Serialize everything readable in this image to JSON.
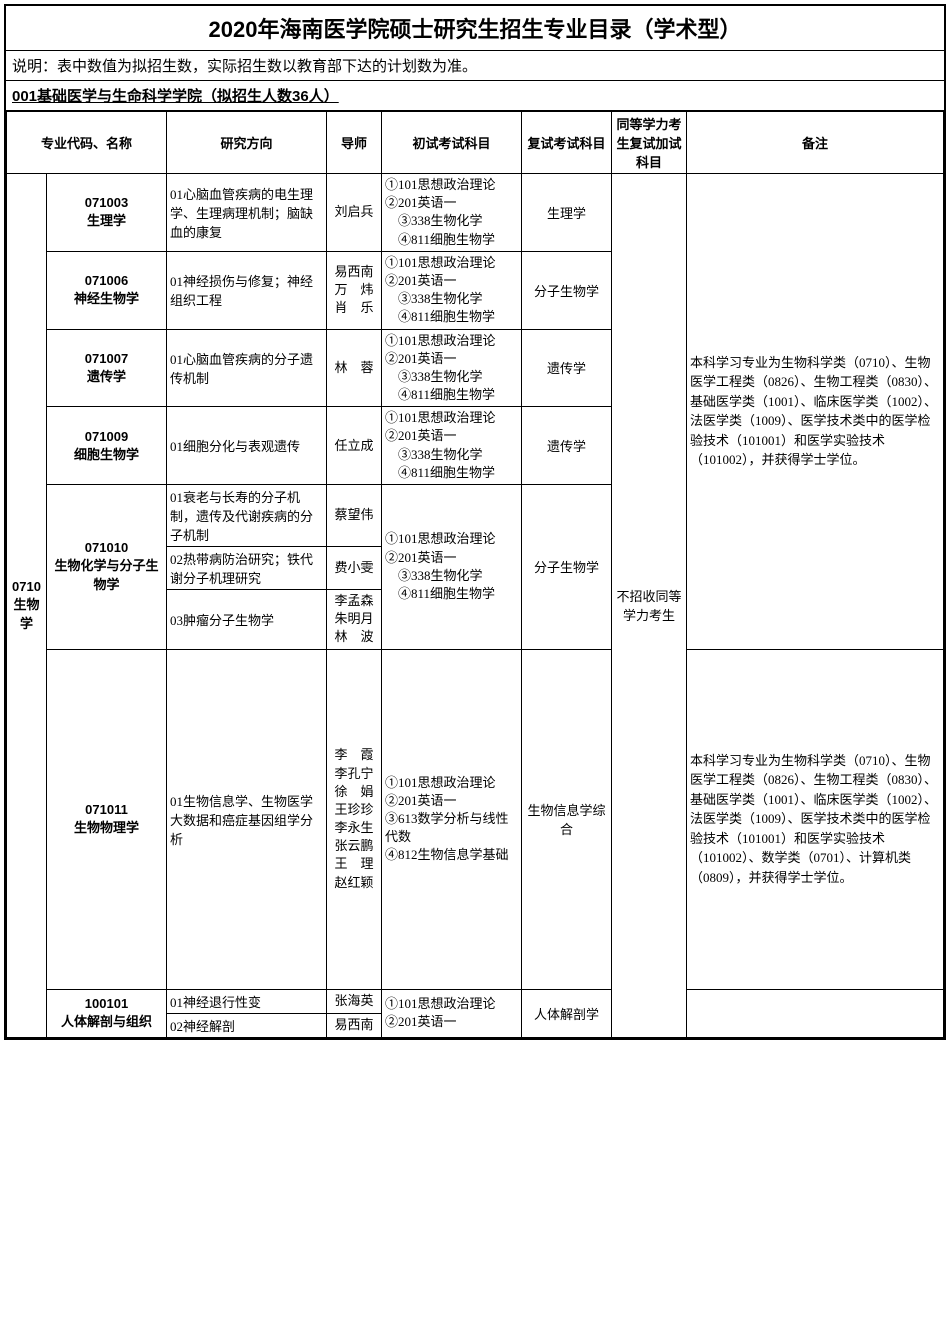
{
  "title": "2020年海南医学院硕士研究生招生专业目录（学术型）",
  "note": "说明：表中数值为拟招生数，实际招生数以教育部下达的计划数为准。",
  "department": "001基础医学与生命科学学院（拟招生人数36人）",
  "headers": {
    "code_name": "专业代码、名称",
    "direction": "研究方向",
    "advisor": "导师",
    "prelim": "初试考试科目",
    "reexam": "复试考试科目",
    "equiv": "同等学力考生复试加试科目",
    "remarks": "备注"
  },
  "cat": {
    "code": "0710",
    "name": "生物学"
  },
  "rows": {
    "r1": {
      "code": "071003",
      "name": "生理学",
      "dir": "01心脑血管疾病的电生理学、生理病理机制；脑缺血的康复",
      "adv": "刘启兵",
      "exam": "①101思想政治理论\n②201英语一\n　③338生物化学\n　④811细胞生物学",
      "re": "生理学"
    },
    "r2": {
      "code": "071006",
      "name": "神经生物学",
      "dir": "01神经损伤与修复；神经组织工程",
      "adv": "易西南\n万　炜\n肖　乐",
      "exam": "①101思想政治理论\n②201英语一\n　③338生物化学\n　④811细胞生物学",
      "re": "分子生物学"
    },
    "r3": {
      "code": "071007",
      "name": "遗传学",
      "dir": "01心脑血管疾病的分子遗传机制",
      "adv": "林　蓉",
      "exam": "①101思想政治理论\n②201英语一\n　③338生物化学\n　④811细胞生物学",
      "re": "遗传学"
    },
    "r4": {
      "code": "071009",
      "name": "细胞生物学",
      "dir": "01细胞分化与表观遗传",
      "adv": "任立成",
      "exam": "①101思想政治理论\n②201英语一\n　③338生物化学\n　④811细胞生物学",
      "re": "遗传学"
    },
    "r5": {
      "code": "071010",
      "name": "生物化学与分子生物学",
      "dir1": "01衰老与长寿的分子机制，遗传及代谢疾病的分子机制",
      "adv1": "蔡望伟",
      "dir2": "02热带病防治研究；铁代谢分子机理研究",
      "adv2": "费小雯",
      "dir3": "03肿瘤分子生物学",
      "adv3": "李孟森\n朱明月\n林　波",
      "exam": "①101思想政治理论\n②201英语一\n　③338生物化学\n　④811细胞生物学",
      "re": "分子生物学"
    },
    "r6": {
      "code": "071011",
      "name": "生物物理学",
      "dir": "01生物信息学、生物医学大数据和癌症基因组学分析",
      "adv": "李　霞\n李孔宁\n徐　娟\n王珍珍\n李永生\n张云鹏\n王　理\n赵红颖",
      "exam": "①101思想政治理论\n②201英语一\n③613数学分析与线性代数\n④812生物信息学基础",
      "re": "生物信息学综合"
    },
    "r7": {
      "code": "100101",
      "name": "人体解剖与组织",
      "dir1": "01神经退行性变",
      "adv1": "张海英",
      "dir2": "02神经解剖",
      "adv2": "易西南",
      "exam": "①101思想政治理论\n②201英语一",
      "re": "人体解剖学"
    }
  },
  "equiv": "不招收同等学力考生",
  "remark1": "本科学习专业为生物科学类（0710）、生物医学工程类（0826）、生物工程类（0830）、基础医学类（1001）、临床医学类（1002）、法医学类（1009）、医学技术类中的医学检验技术（101001）和医学实验技术（101002），并获得学士学位。",
  "remark2": "本科学习专业为生物科学类（0710）、生物医学工程类（0826）、生物工程类（0830）、基础医学类（1001）、临床医学类（1002）、法医学类（1009）、医学技术类中的医学检验技术（101001）和医学实验技术（101002）、数学类（0701）、计算机类（0809），并获得学士学位。"
}
